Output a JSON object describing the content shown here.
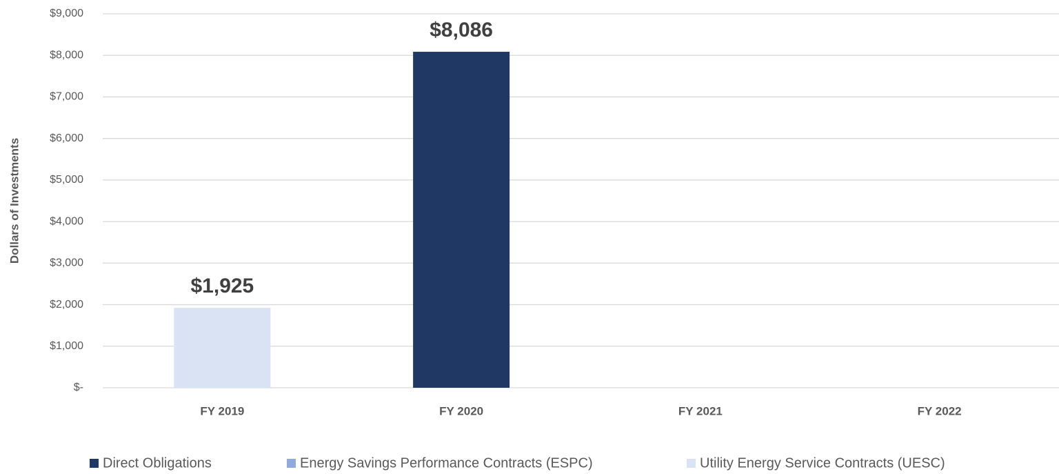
{
  "chart_data": {
    "type": "stacked_bar",
    "y_label": "Dollars of Investments",
    "categories": [
      "FY 2019",
      "FY 2020",
      "FY 2021",
      "FY 2022"
    ],
    "series": [
      {
        "name": "Direct Obligations",
        "color": "#203864",
        "values": [
          null,
          8086,
          null,
          null
        ],
        "value_labels": [
          null,
          "$8,086",
          null,
          null
        ]
      },
      {
        "name": "Energy Savings Performance Contracts (ESPC)",
        "color": "#8faadc",
        "values": [
          null,
          null,
          null,
          null
        ]
      },
      {
        "name": "Utility Energy Service Contracts (UESC)",
        "color": "#dae3f3",
        "values": [
          1925,
          null,
          null,
          null
        ],
        "value_labels": [
          "$1,925",
          null,
          null,
          null
        ]
      }
    ],
    "ylim": [
      0,
      9000
    ],
    "yticks": [
      {
        "value": 0,
        "label": "$-"
      },
      {
        "value": 1000,
        "label": "$1,000"
      },
      {
        "value": 2000,
        "label": "$2,000"
      },
      {
        "value": 3000,
        "label": "$3,000"
      },
      {
        "value": 4000,
        "label": "$4,000"
      },
      {
        "value": 5000,
        "label": "$5,000"
      },
      {
        "value": 6000,
        "label": "$6,000"
      },
      {
        "value": 7000,
        "label": "$7,000"
      },
      {
        "value": 8000,
        "label": "$8,000"
      },
      {
        "value": 9000,
        "label": "$9,000"
      }
    ],
    "grid": true,
    "legend": "bottom"
  }
}
